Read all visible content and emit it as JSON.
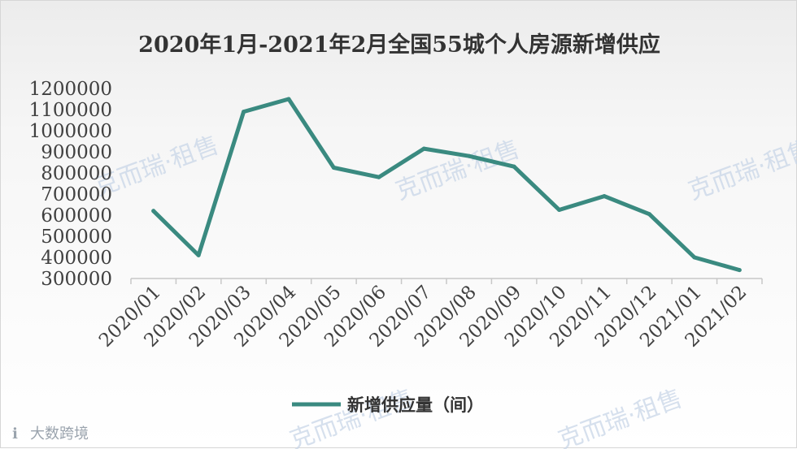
{
  "chart_data": {
    "type": "line",
    "title": "2020年1月-2021年2月全国55城个人房源新增供应",
    "categories": [
      "2020/01",
      "2020/02",
      "2020/03",
      "2020/04",
      "2020/05",
      "2020/06",
      "2020/07",
      "2020/08",
      "2020/09",
      "2020/10",
      "2020/11",
      "2020/12",
      "2021/01",
      "2021/02"
    ],
    "series": [
      {
        "name": "新增供应量（间）",
        "color": "#3a8a80",
        "values": [
          620000,
          410000,
          1090000,
          1150000,
          825000,
          780000,
          915000,
          880000,
          830000,
          625000,
          690000,
          605000,
          400000,
          340000
        ]
      }
    ],
    "yticks": [
      "1200000",
      "1100000",
      "1000000",
      "900000",
      "800000",
      "700000",
      "600000",
      "500000",
      "400000",
      "300000"
    ],
    "ylim": [
      300000,
      1200000
    ],
    "grid": false,
    "legend": "bottom",
    "watermarks": [
      "克而瑞·租售",
      "克而瑞·租售",
      "克而瑞·租售",
      "克而瑞·租售",
      "克而瑞·租售"
    ],
    "source_mark": "大数跨境"
  }
}
